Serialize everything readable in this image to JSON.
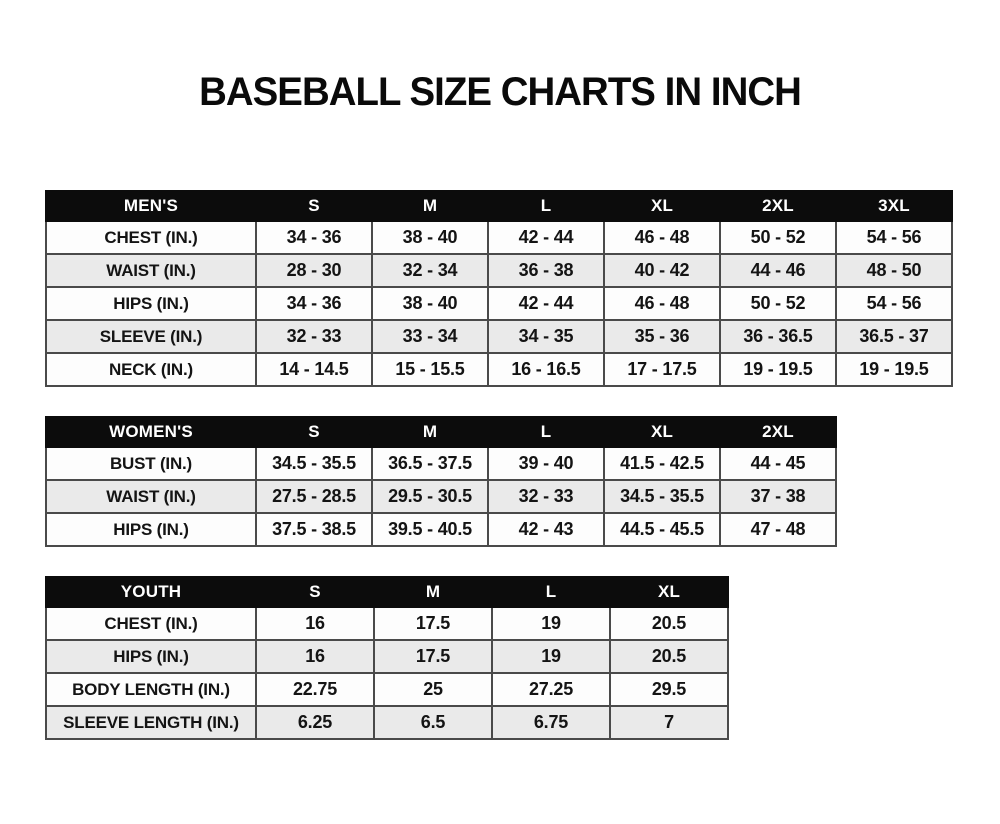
{
  "page": {
    "title": "BASEBALL SIZE CHARTS IN INCH"
  },
  "colors": {
    "background": "#ffffff",
    "header_bg": "#0c0c0c",
    "header_text": "#ffffff",
    "row_bg": "#fdfdfd",
    "row_alt_bg": "#eaeaea",
    "border": "#4a4a4a",
    "title_text": "#0a0a0a"
  },
  "chart_data": [
    {
      "type": "table",
      "id": "mens",
      "title": "MEN'S",
      "header": [
        "MEN'S",
        "S",
        "M",
        "L",
        "XL",
        "2XL",
        "3XL"
      ],
      "rows": [
        {
          "label": "CHEST (IN.)",
          "values": [
            "34 - 36",
            "38 - 40",
            "42 - 44",
            "46 - 48",
            "50 - 52",
            "54 - 56"
          ]
        },
        {
          "label": "WAIST (IN.)",
          "values": [
            "28 - 30",
            "32 - 34",
            "36 - 38",
            "40 - 42",
            "44 - 46",
            "48 - 50"
          ]
        },
        {
          "label": "HIPS (IN.)",
          "values": [
            "34 - 36",
            "38 - 40",
            "42 - 44",
            "46 - 48",
            "50 - 52",
            "54 - 56"
          ]
        },
        {
          "label": "SLEEVE (IN.)",
          "values": [
            "32 - 33",
            "33 - 34",
            "34 - 35",
            "35 - 36",
            "36 - 36.5",
            "36.5 - 37"
          ]
        },
        {
          "label": "NECK (IN.)",
          "values": [
            "14 - 14.5",
            "15 - 15.5",
            "16 - 16.5",
            "17 - 17.5",
            "19 - 19.5",
            "19 - 19.5"
          ]
        }
      ]
    },
    {
      "type": "table",
      "id": "womens",
      "title": "WOMEN'S",
      "header": [
        "WOMEN'S",
        "S",
        "M",
        "L",
        "XL",
        "2XL"
      ],
      "rows": [
        {
          "label": "BUST (IN.)",
          "values": [
            "34.5 - 35.5",
            "36.5 - 37.5",
            "39 - 40",
            "41.5 - 42.5",
            "44 - 45"
          ]
        },
        {
          "label": "WAIST (IN.)",
          "values": [
            "27.5 - 28.5",
            "29.5 - 30.5",
            "32 - 33",
            "34.5 - 35.5",
            "37 - 38"
          ]
        },
        {
          "label": "HIPS (IN.)",
          "values": [
            "37.5 - 38.5",
            "39.5 - 40.5",
            "42 - 43",
            "44.5 - 45.5",
            "47 - 48"
          ]
        }
      ]
    },
    {
      "type": "table",
      "id": "youth",
      "title": "YOUTH",
      "header": [
        "YOUTH",
        "S",
        "M",
        "L",
        "XL"
      ],
      "rows": [
        {
          "label": "CHEST (IN.)",
          "values": [
            "16",
            "17.5",
            "19",
            "20.5"
          ]
        },
        {
          "label": "HIPS (IN.)",
          "values": [
            "16",
            "17.5",
            "19",
            "20.5"
          ]
        },
        {
          "label": "BODY LENGTH (IN.)",
          "values": [
            "22.75",
            "25",
            "27.25",
            "29.5"
          ]
        },
        {
          "label": "SLEEVE LENGTH (IN.)",
          "values": [
            "6.25",
            "6.5",
            "6.75",
            "7"
          ]
        }
      ]
    }
  ]
}
